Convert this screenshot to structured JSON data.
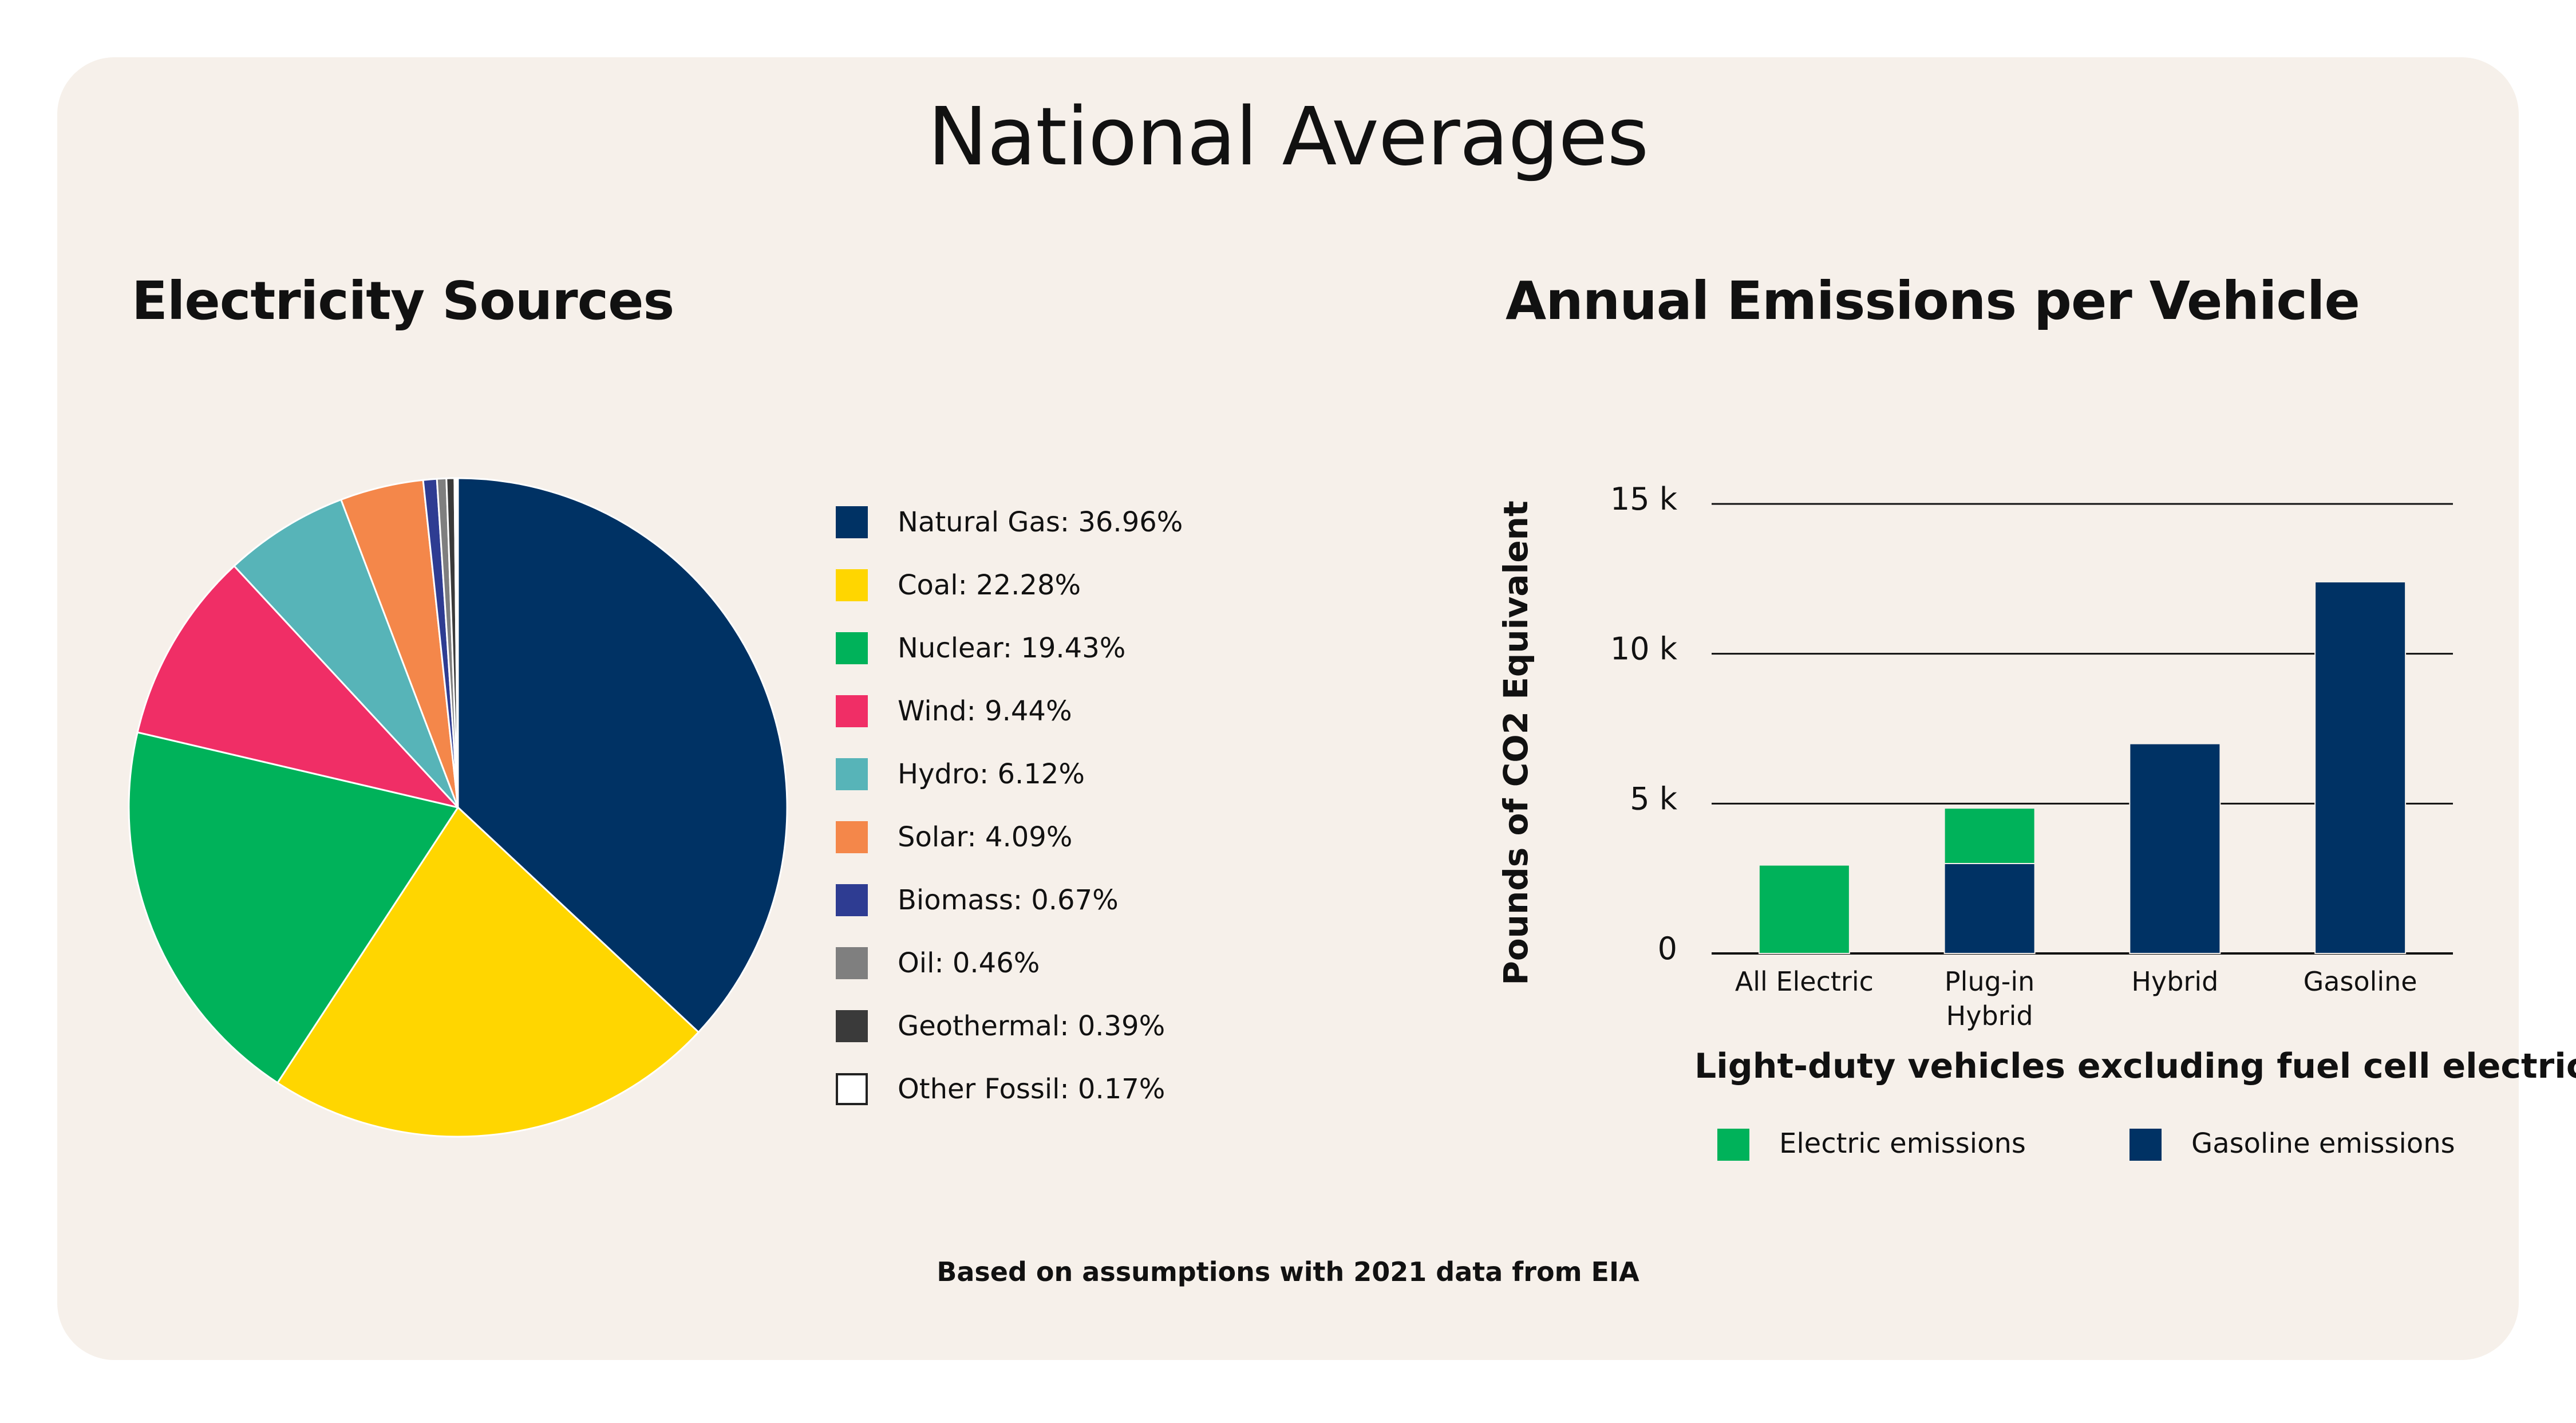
{
  "page": {
    "title": "National Averages",
    "footnote": "Based on assumptions with 2021 data from EIA"
  },
  "chart_data": [
    {
      "type": "pie",
      "title": "Electricity Sources",
      "slices": [
        {
          "label": "Natural Gas: 36.96%",
          "name": "Natural Gas",
          "value": 36.96,
          "color": "#003264"
        },
        {
          "label": "Coal: 22.28%",
          "name": "Coal",
          "value": 22.28,
          "color": "#ffd600"
        },
        {
          "label": "Nuclear: 19.43%",
          "name": "Nuclear",
          "value": 19.43,
          "color": "#00b25a"
        },
        {
          "label": "Wind: 9.44%",
          "name": "Wind",
          "value": 9.44,
          "color": "#f02e66"
        },
        {
          "label": "Hydro: 6.12%",
          "name": "Hydro",
          "value": 6.12,
          "color": "#57b4b8"
        },
        {
          "label": "Solar: 4.09%",
          "name": "Solar",
          "value": 4.09,
          "color": "#f4874a"
        },
        {
          "label": "Biomass: 0.67%",
          "name": "Biomass",
          "value": 0.67,
          "color": "#2e3c92"
        },
        {
          "label": "Oil: 0.46%",
          "name": "Oil",
          "value": 0.46,
          "color": "#7f7f7f"
        },
        {
          "label": "Geothermal: 0.39%",
          "name": "Geothermal",
          "value": 0.39,
          "color": "#3a3a3a"
        },
        {
          "label": "Other Fossil: 0.17%",
          "name": "Other Fossil",
          "value": 0.17,
          "color": "#ffffff"
        }
      ]
    },
    {
      "type": "bar",
      "stacked": true,
      "title": "Annual Emissions per Vehicle",
      "xlabel": "Light-duty vehicles excluding fuel cell electric",
      "ylabel": "Pounds of CO2 Equivalent",
      "ylim": [
        0,
        15000
      ],
      "yticks": [
        {
          "value": 0,
          "label": "0"
        },
        {
          "value": 5000,
          "label": "5 k"
        },
        {
          "value": 10000,
          "label": "10 k"
        },
        {
          "value": 15000,
          "label": "15 k"
        }
      ],
      "grid": true,
      "legend_position": "bottom",
      "categories": [
        "All Electric",
        "Plug-in Hybrid",
        "Hybrid",
        "Gasoline"
      ],
      "category_lines": [
        [
          "All Electric"
        ],
        [
          "Plug-in",
          "Hybrid"
        ],
        [
          "Hybrid"
        ],
        [
          "Gasoline"
        ]
      ],
      "series": [
        {
          "name": "Gasoline emissions",
          "color": "#003264",
          "values": [
            0,
            3000,
            7000,
            12400
          ]
        },
        {
          "name": "Electric emissions",
          "color": "#00b25a",
          "values": [
            2950,
            1850,
            0,
            0
          ]
        }
      ],
      "legend": [
        {
          "label": "Electric emissions",
          "color": "#00b25a"
        },
        {
          "label": "Gasoline emissions",
          "color": "#003264"
        }
      ]
    }
  ]
}
